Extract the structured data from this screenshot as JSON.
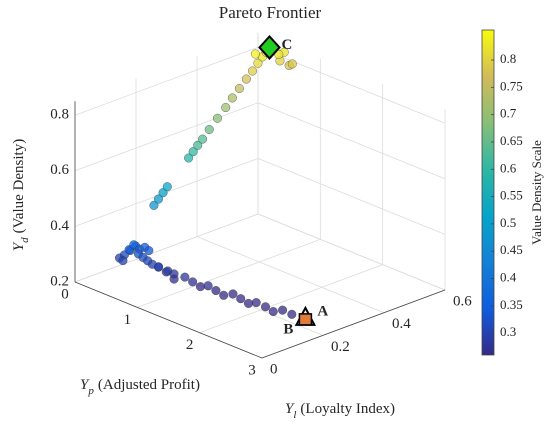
{
  "chart_data": {
    "type": "scatter3d",
    "title": "Pareto Frontier",
    "xlabel": {
      "symbol": "Y",
      "sub": "p",
      "text": "(Adjusted Profit)"
    },
    "ylabel": {
      "symbol": "Y",
      "sub": "l",
      "text": "(Loyalty Index)"
    },
    "zlabel": {
      "symbol": "Y",
      "sub": "d",
      "text": "(Value Density)"
    },
    "xlim": [
      0,
      3
    ],
    "xticks": [
      0,
      1,
      2,
      3
    ],
    "ylim": [
      0,
      0.6
    ],
    "yticks": [
      0,
      0.2,
      0.4,
      0.6
    ],
    "zlim": [
      0.2,
      0.85
    ],
    "zticks": [
      0.2,
      0.4,
      0.6,
      0.8
    ],
    "grid": true,
    "x": [
      0.63,
      0.62,
      0.61,
      0.6,
      0.555,
      0.545,
      0.535,
      0.525,
      0.51,
      0.49,
      0.475,
      0.46,
      0.445,
      0.43,
      0.42,
      0.405,
      0.395,
      0.39,
      0.45,
      0.5,
      0.42,
      0.48,
      0.55,
      0.35,
      0.42,
      0.45,
      0.5,
      0.52,
      0.55,
      0.58,
      0.6,
      0.62,
      0.65,
      0.68,
      0.7,
      0.72,
      0.75,
      0.8,
      0.85,
      0.9,
      0.95,
      1.0,
      1.05,
      1.1,
      1.2,
      1.3,
      1.4,
      1.5,
      1.6,
      1.7,
      1.8,
      1.9,
      2.0,
      2.1,
      2.2,
      2.3,
      2.4,
      2.5
    ],
    "y": [
      0.13,
      0.147,
      0.164,
      0.18,
      0.259,
      0.276,
      0.293,
      0.311,
      0.336,
      0.367,
      0.397,
      0.422,
      0.448,
      0.474,
      0.496,
      0.517,
      0.534,
      0.547,
      0.58,
      0.6,
      0.6,
      0.57,
      0.6,
      0.52,
      0.06,
      0.07,
      0.055,
      0.075,
      0.065,
      0.08,
      0.07,
      0.085,
      0.075,
      0.09,
      0.08,
      0.095,
      0.085,
      0.09,
      0.1,
      0.09,
      0.105,
      0.1,
      0.11,
      0.1,
      0.115,
      0.12,
      0.125,
      0.13,
      0.135,
      0.14,
      0.15,
      0.155,
      0.16,
      0.165,
      0.175,
      0.18,
      0.19,
      0.2
    ],
    "z": [
      0.48,
      0.495,
      0.51,
      0.524,
      0.591,
      0.606,
      0.621,
      0.635,
      0.658,
      0.684,
      0.709,
      0.732,
      0.754,
      0.776,
      0.795,
      0.813,
      0.828,
      0.839,
      0.8,
      0.78,
      0.82,
      0.83,
      0.79,
      0.84,
      0.3,
      0.31,
      0.3,
      0.33,
      0.34,
      0.35,
      0.36,
      0.34,
      0.33,
      0.35,
      0.32,
      0.34,
      0.31,
      0.3,
      0.29,
      0.3,
      0.28,
      0.29,
      0.28,
      0.27,
      0.28,
      0.27,
      0.26,
      0.27,
      0.26,
      0.25,
      0.26,
      0.25,
      0.24,
      0.25,
      0.24,
      0.23,
      0.24,
      0.23
    ],
    "colorbar": {
      "label": "Value Density Scale",
      "clim": [
        0.26,
        0.855
      ],
      "ticks": [
        0.3,
        0.35,
        0.4,
        0.45,
        0.5,
        0.55,
        0.6,
        0.65,
        0.7,
        0.75,
        0.8
      ],
      "colormap": [
        "#352a87",
        "#0f5cdd",
        "#1481d6",
        "#06a4ca",
        "#2eb7a4",
        "#87bf77",
        "#d1bb59",
        "#f9fb0e"
      ]
    },
    "annotations": [
      {
        "text": "A",
        "x": 2.62,
        "y": 0.22,
        "z": 0.22
      },
      {
        "text": "B",
        "x": 2.62,
        "y": 0.22,
        "z": 0.22
      },
      {
        "text": "C",
        "x": 0.38,
        "y": 0.56,
        "z": 0.85
      }
    ]
  }
}
